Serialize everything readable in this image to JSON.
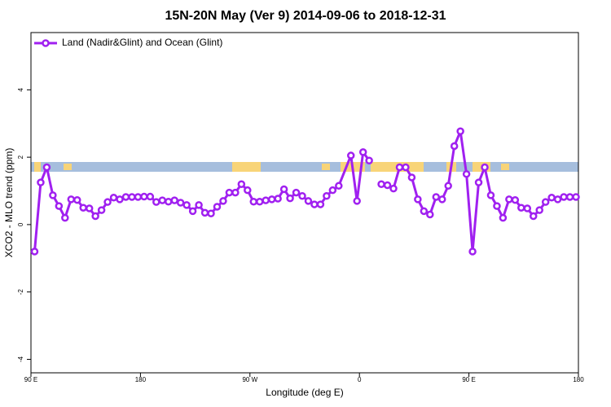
{
  "chart_data": {
    "type": "line",
    "title": "15N-20N May (Ver 9)   2014-09-06 to 2018-12-31",
    "xlabel": "Longitude (deg E)",
    "ylabel": "XCO2 - MLO trend (ppm)",
    "x": [
      93,
      98,
      103,
      108,
      113,
      118,
      123,
      128,
      133,
      138,
      143,
      148,
      153,
      158,
      163,
      168,
      173,
      178,
      183,
      188,
      193,
      198,
      203,
      208,
      213,
      218,
      223,
      228,
      233,
      238,
      243,
      248,
      253,
      258,
      263,
      268,
      273,
      278,
      283,
      288,
      293,
      298,
      303,
      308,
      313,
      318,
      323,
      328,
      333,
      338,
      343,
      353,
      358,
      363,
      368,
      373,
      378,
      383,
      388,
      393,
      398,
      403,
      408,
      413,
      418,
      423,
      428,
      433,
      438,
      443,
      448,
      453,
      458,
      463,
      468,
      473,
      478,
      483,
      488,
      493,
      498,
      503,
      508,
      513,
      518,
      523,
      528,
      533,
      538
    ],
    "series": [
      {
        "name": "Land (Nadir&Glint) and Ocean (Glint)",
        "color": "#a020f0",
        "values": [
          -0.8,
          1.25,
          1.7,
          0.87,
          0.55,
          0.2,
          0.75,
          0.73,
          0.5,
          0.48,
          0.25,
          0.43,
          0.67,
          0.8,
          0.75,
          0.82,
          0.82,
          0.82,
          0.83,
          0.83,
          0.67,
          0.72,
          0.68,
          0.72,
          0.65,
          0.58,
          0.4,
          0.58,
          0.35,
          0.33,
          0.53,
          0.7,
          0.95,
          0.95,
          1.2,
          1.02,
          0.68,
          0.68,
          0.72,
          0.75,
          0.77,
          1.05,
          0.78,
          0.95,
          0.85,
          0.7,
          0.6,
          0.6,
          0.85,
          1.02,
          1.15,
          2.05,
          0.7,
          2.15,
          1.9,
          null,
          1.2,
          1.17,
          1.07,
          1.7,
          1.7,
          1.4,
          0.75,
          0.4,
          0.3,
          0.82,
          0.75,
          1.15,
          2.33,
          2.77,
          1.5,
          -0.8,
          1.25,
          1.7,
          0.87,
          0.55,
          0.2,
          0.75,
          0.73,
          0.5,
          0.48,
          0.25,
          0.43,
          0.67,
          0.8,
          0.75,
          0.82,
          0.82,
          0.82
        ]
      }
    ],
    "xlim": [
      90,
      540
    ],
    "xticks": [
      {
        "value": 90,
        "label": "90 E"
      },
      {
        "value": 180,
        "label": "180"
      },
      {
        "value": 270,
        "label": "90 W"
      },
      {
        "value": 360,
        "label": "0"
      },
      {
        "value": 450,
        "label": "90 E"
      },
      {
        "value": 540,
        "label": "180"
      }
    ],
    "ylim": [
      -4.4,
      5.7
    ],
    "yticks": [
      -4,
      -2,
      0,
      2,
      4
    ],
    "legend": "top-left"
  }
}
